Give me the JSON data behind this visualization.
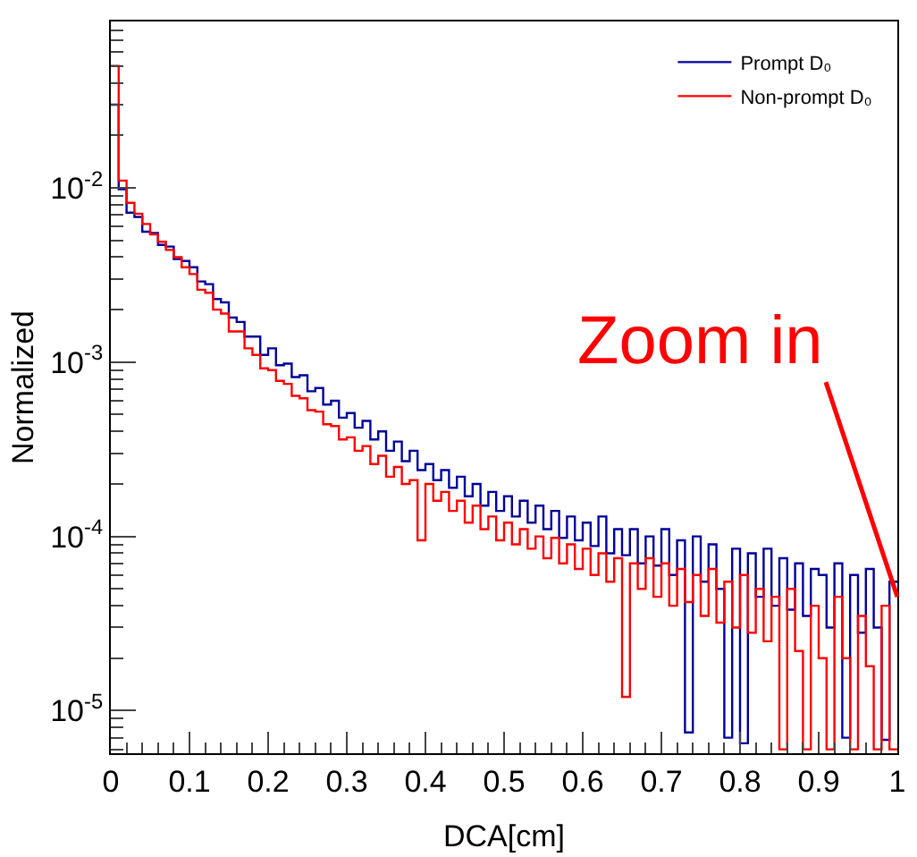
{
  "chart_data": {
    "type": "histogram",
    "xlabel": "DCA[cm]",
    "ylabel": "Normalized",
    "bins": [
      0,
      0.01,
      0.02,
      0.03,
      0.04,
      0.05,
      0.06,
      0.07,
      0.08,
      0.09,
      0.1,
      0.11,
      0.12,
      0.13,
      0.14,
      0.15,
      0.16,
      0.17,
      0.18,
      0.19,
      0.2,
      0.21,
      0.22,
      0.23,
      0.24,
      0.25,
      0.26,
      0.27,
      0.28,
      0.29,
      0.3,
      0.31,
      0.32,
      0.33,
      0.34,
      0.35,
      0.36,
      0.37,
      0.38,
      0.39,
      0.4,
      0.41,
      0.42,
      0.43,
      0.44,
      0.45,
      0.46,
      0.47,
      0.48,
      0.49,
      0.5,
      0.51,
      0.52,
      0.53,
      0.54,
      0.55,
      0.56,
      0.57,
      0.58,
      0.59,
      0.6,
      0.61,
      0.62,
      0.63,
      0.64,
      0.65,
      0.66,
      0.67,
      0.68,
      0.69,
      0.7,
      0.71,
      0.72,
      0.73,
      0.74,
      0.75,
      0.76,
      0.77,
      0.78,
      0.79,
      0.8,
      0.81,
      0.82,
      0.83,
      0.84,
      0.85,
      0.86,
      0.87,
      0.88,
      0.89,
      0.9,
      0.91,
      0.92,
      0.93,
      0.94,
      0.95,
      0.96,
      0.97,
      0.98,
      0.99,
      1
    ],
    "series": [
      {
        "name": "Prompt D₀",
        "color": "#000099",
        "values": [
          0.03,
          0.0098,
          0.0072,
          0.0068,
          0.0056,
          0.0055,
          0.0047,
          0.0046,
          0.0039,
          0.0038,
          0.0035,
          0.0029,
          0.0028,
          0.0023,
          0.0022,
          0.0018,
          0.0017,
          0.0014,
          0.0014,
          0.0011,
          0.0012,
          0.00096,
          0.00098,
          0.00082,
          0.00084,
          0.00068,
          0.00071,
          0.00057,
          0.0006,
          0.00048,
          0.00051,
          0.00042,
          0.00046,
          0.00036,
          0.0004,
          0.00031,
          0.00035,
          0.00027,
          0.00031,
          0.00024,
          0.00026,
          0.00021,
          0.00024,
          0.00019,
          0.00022,
          0.00017,
          0.0002,
          0.00015,
          0.00018,
          0.00014,
          0.00017,
          0.00013,
          0.00016,
          0.00012,
          0.00015,
          0.00011,
          0.00014,
          9.8e-05,
          0.00013,
          9.5e-05,
          0.00012,
          8.8e-05,
          0.00013,
          8e-05,
          0.00011,
          7.8e-05,
          0.00011,
          7e-05,
          0.0001,
          6.8e-05,
          0.00011,
          6e-05,
          9.5e-05,
          7.5e-06,
          0.0001,
          5.5e-05,
          9e-05,
          5e-05,
          7e-06,
          8.5e-05,
          6.5e-06,
          8e-05,
          4.5e-05,
          8.5e-05,
          4e-05,
          7.5e-05,
          3.8e-05,
          7e-05,
          3.5e-05,
          6.5e-05,
          6e-05,
          3e-05,
          7e-05,
          7e-06,
          6e-05,
          2.8e-05,
          6.5e-05,
          3e-05,
          6.8e-06,
          5.5e-05
        ]
      },
      {
        "name": "Non-prompt D₀",
        "color": "#ff0000",
        "values": [
          0.05,
          0.011,
          0.0082,
          0.0071,
          0.0062,
          0.0054,
          0.0049,
          0.0044,
          0.004,
          0.0035,
          0.0032,
          0.0026,
          0.0025,
          0.002,
          0.0019,
          0.0015,
          0.0015,
          0.0012,
          0.0011,
          0.00092,
          0.0009,
          0.00078,
          0.00075,
          0.00064,
          0.00062,
          0.00053,
          0.00052,
          0.00044,
          0.00043,
          0.00036,
          0.00037,
          0.00031,
          0.00033,
          0.00026,
          0.00029,
          0.00022,
          0.00025,
          0.0002,
          0.00021,
          9.5e-05,
          0.0002,
          0.00016,
          0.00018,
          0.00014,
          0.00016,
          0.00012,
          0.00015,
          0.00011,
          0.00013,
          9.5e-05,
          0.00012,
          9e-05,
          0.00011,
          8.5e-05,
          0.0001,
          7.5e-05,
          9.8e-05,
          7e-05,
          9e-05,
          6.5e-05,
          8.5e-05,
          6e-05,
          8e-05,
          5.5e-05,
          7.5e-05,
          1.2e-05,
          7e-05,
          5e-05,
          7.5e-05,
          4.5e-05,
          7e-05,
          4e-05,
          6.5e-05,
          4.2e-05,
          6e-05,
          3.5e-05,
          6.5e-05,
          3.2e-05,
          5.5e-05,
          3e-05,
          6e-05,
          2.8e-05,
          5e-05,
          2.5e-05,
          4.5e-05,
          6e-06,
          5e-05,
          2.2e-05,
          6e-06,
          4e-05,
          2e-05,
          6e-06,
          4.5e-05,
          2e-05,
          6e-06,
          3.5e-05,
          1.8e-05,
          6e-06,
          4e-05,
          6e-06
        ]
      }
    ],
    "xlim": [
      0,
      1
    ],
    "xticks": [
      0,
      0.1,
      0.2,
      0.3,
      0.4,
      0.5,
      0.6,
      0.7,
      0.8,
      0.9,
      1
    ],
    "ylim": [
      5.7e-06,
      0.09
    ],
    "log": true,
    "yticks": [
      {
        "value": 1e-05,
        "label": "10$^{-5}$"
      },
      {
        "value": 0.0001,
        "label": "10$^{-4}$"
      },
      {
        "value": 0.001,
        "label": "10$^{-3}$"
      },
      {
        "value": 0.01,
        "label": "10$^{-2}$"
      }
    ],
    "legend": "top right",
    "annotations": [
      {
        "text": "Zoom in",
        "x": 1,
        "y": 4.5e-05
      }
    ]
  }
}
